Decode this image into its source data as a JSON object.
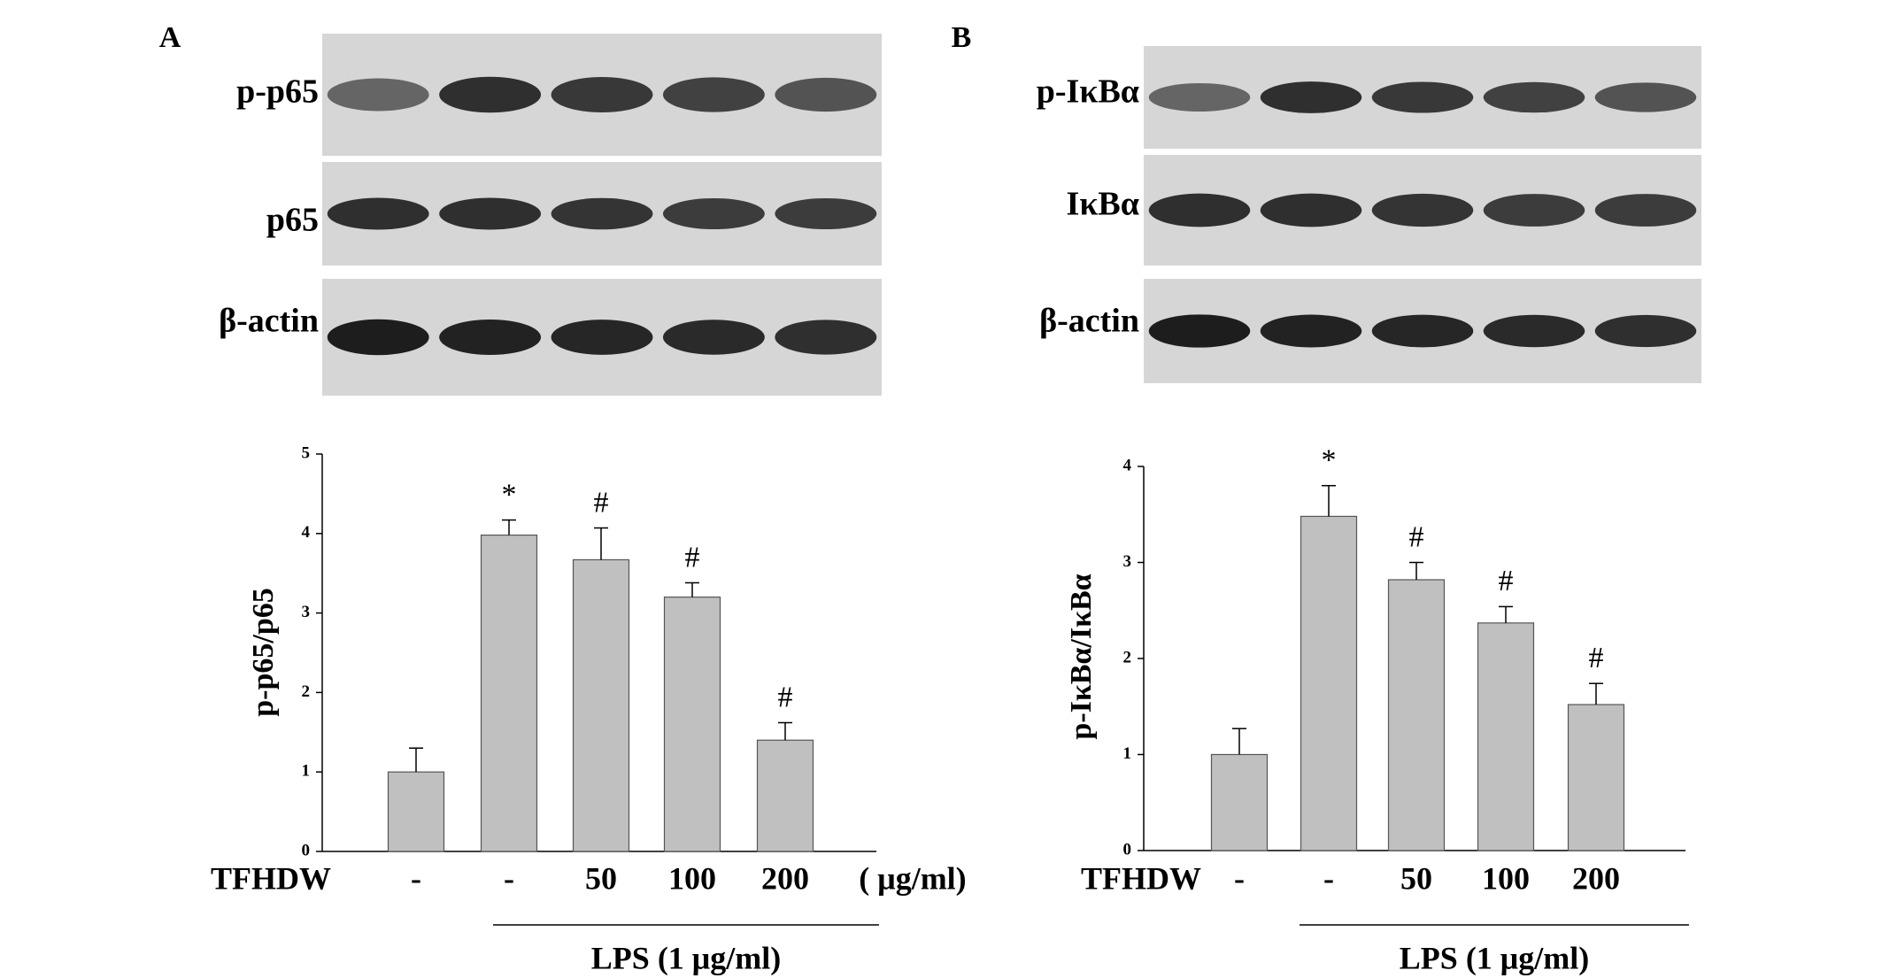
{
  "chart_data": [
    {
      "type": "bar",
      "panel": "A",
      "blot_rows": [
        "p-p65",
        "p65",
        "β-actin"
      ],
      "ylabel": "p-p65/p65",
      "xlabel": "TFHDW",
      "unit": "( μg/ml)",
      "group_label": "LPS (1 μg/ml)",
      "categories": [
        "-",
        "-",
        "50",
        "100",
        "200"
      ],
      "values": [
        1.0,
        3.98,
        3.67,
        3.2,
        1.4
      ],
      "errors": [
        0.3,
        0.19,
        0.4,
        0.18,
        0.22
      ],
      "annotations": [
        null,
        "*",
        "#",
        "#",
        "#"
      ],
      "color": "#c0c0c0",
      "ylim": [
        0,
        5
      ],
      "yticks": [
        0,
        1,
        2,
        3,
        4,
        5
      ]
    },
    {
      "type": "bar",
      "panel": "B",
      "blot_rows": [
        "p-IκBα",
        "IκBα",
        "β-actin"
      ],
      "ylabel": "p-IκBα/IκBα",
      "xlabel": "TFHDW",
      "group_label": "LPS (1 μg/ml)",
      "categories": [
        "-",
        "-",
        "50",
        "100",
        "200"
      ],
      "values": [
        1.0,
        3.48,
        2.82,
        2.37,
        1.52
      ],
      "errors": [
        0.27,
        0.32,
        0.18,
        0.17,
        0.22
      ],
      "annotations": [
        null,
        "*",
        "#",
        "#",
        "#"
      ],
      "color": "#c0c0c0",
      "ylim": [
        0,
        4
      ],
      "yticks": [
        0,
        1,
        2,
        3,
        4
      ]
    }
  ]
}
